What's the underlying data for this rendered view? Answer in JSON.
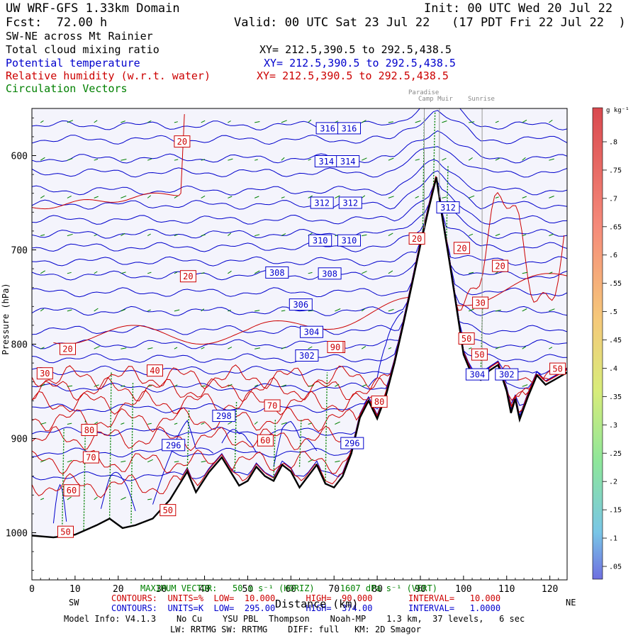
{
  "header": {
    "title": "UW WRF-GFS 1.33km Domain",
    "init": "Init: 00 UTC Wed 20 Jul 22",
    "fcst": "Fcst:  72.00 h",
    "valid": "Valid: 00 UTC Sat 23 Jul 22   (17 PDT Fri 22 Jul 22  )",
    "cross_section": "SW-NE across Mt Rainier",
    "fields": [
      {
        "name": "Total cloud mixing ratio",
        "xy": "XY= 212.5,390.5 to 292.5,438.5",
        "color": "#000000"
      },
      {
        "name": "Potential temperature",
        "xy": "XY= 212.5,390.5 to 292.5,438.5",
        "color": "#0000cc"
      },
      {
        "name": "Relative humidity (w.r.t. water)",
        "xy": "XY= 212.5,390.5 to 292.5,438.5",
        "color": "#cc0000"
      },
      {
        "name": "Circulation Vectors",
        "xy": "",
        "color": "#008000"
      }
    ]
  },
  "landmarks": [
    "Paradise",
    "Camp Muir",
    "Sunrise"
  ],
  "colorbar": {
    "unit": "g kg⁻¹",
    "ticks": [
      ".8",
      ".75",
      ".7",
      ".65",
      ".6",
      ".55",
      ".5",
      ".45",
      ".4",
      ".35",
      ".3",
      ".25",
      ".2",
      ".15",
      ".1",
      ".05"
    ]
  },
  "footer": {
    "sw": "SW",
    "ne": "NE",
    "xlabel": "Distance (km)",
    "max_vector": "MAXIMUM VECTOR:   50 m s⁻¹ (HORIZ)     1607 dPa s⁻¹ (VERT)",
    "rh_contours": "CONTOURS:  UNITS=%  LOW=  10.000      HIGH=  90.000       INTERVAL=   10.000",
    "theta_contours": "CONTOURS:  UNITS=K  LOW=  295.00      HIGH=  374.00       INTERVAL=   1.0000",
    "model_info": "Model Info: V4.1.3    No Cu    YSU PBL  Thompson    Noah-MP    1.3 km,  37 levels,   6 sec",
    "model_info2": "LW: RRTMG SW: RRTMG    DIFF: full   KM: 2D Smagor",
    "colors": {
      "theta": "#0000cc",
      "rh": "#cc0000",
      "vectors": "#008000"
    }
  },
  "chart_data": {
    "type": "cross-section",
    "title": "UW WRF-GFS 1.33km Domain",
    "xlabel": "Distance (km)",
    "ylabel": "Pressure (hPa)",
    "xlim": [
      0,
      124
    ],
    "ylim": [
      1050,
      550
    ],
    "x_ticks": [
      0,
      10,
      20,
      30,
      40,
      50,
      60,
      70,
      80,
      90,
      100,
      110,
      120
    ],
    "y_ticks": [
      600,
      700,
      800,
      900,
      1000
    ],
    "y_tick_labels": [
      "600",
      "700",
      "800",
      "900",
      "1000"
    ],
    "landmark_x": [
      90.9,
      94.4,
      104.3
    ],
    "terrain": {
      "x": [
        0,
        5,
        10,
        15,
        18,
        21,
        24,
        28,
        32,
        36,
        38,
        41,
        44,
        46,
        48,
        50,
        52,
        54,
        56,
        58,
        60,
        62,
        64,
        66,
        68,
        70,
        72,
        74,
        76,
        78,
        80,
        82,
        84,
        86,
        88,
        90,
        92,
        93.7,
        95,
        97,
        99,
        100,
        102,
        104,
        106,
        108,
        110,
        111,
        112,
        113,
        115,
        117,
        119,
        121,
        124
      ],
      "p": [
        1003,
        1005,
        1002,
        992,
        985,
        995,
        992,
        985,
        965,
        935,
        957,
        936,
        920,
        935,
        950,
        945,
        930,
        940,
        945,
        928,
        935,
        952,
        940,
        928,
        948,
        952,
        940,
        916,
        878,
        860,
        879,
        855,
        820,
        780,
        738,
        695,
        655,
        623,
        663,
        720,
        780,
        811,
        833,
        838,
        828,
        822,
        850,
        873,
        858,
        880,
        855,
        833,
        843,
        838,
        830
      ]
    },
    "theta_lines": [
      {
        "v": 296,
        "p": 940
      },
      {
        "v": 297,
        "p": 915
      },
      {
        "v": 298,
        "p": 893
      },
      {
        "v": 299,
        "p": 868
      },
      {
        "v": 300,
        "p": 846
      },
      {
        "v": 301,
        "p": 828
      },
      {
        "v": 302,
        "p": 815
      },
      {
        "v": 303,
        "p": 800
      },
      {
        "v": 304,
        "p": 785
      },
      {
        "v": 305,
        "p": 765
      },
      {
        "v": 306,
        "p": 745
      },
      {
        "v": 307,
        "p": 727
      },
      {
        "v": 308,
        "p": 712
      },
      {
        "v": 309,
        "p": 697
      },
      {
        "v": 310,
        "p": 683
      },
      {
        "v": 311,
        "p": 668
      },
      {
        "v": 312,
        "p": 652
      },
      {
        "v": 313,
        "p": 637
      },
      {
        "v": 314,
        "p": 618
      },
      {
        "v": 315,
        "p": 603
      },
      {
        "v": 316,
        "p": 583
      },
      {
        "v": 317,
        "p": 568
      }
    ],
    "theta_labels": [
      {
        "text": "316",
        "x": 68.5,
        "p": 571
      },
      {
        "text": "316",
        "x": 73.5,
        "p": 571
      },
      {
        "text": "314",
        "x": 68.2,
        "p": 606
      },
      {
        "text": "314",
        "x": 73.2,
        "p": 606
      },
      {
        "text": "312",
        "x": 67.2,
        "p": 650
      },
      {
        "text": "312",
        "x": 73.8,
        "p": 650
      },
      {
        "text": "312",
        "x": 96.4,
        "p": 655
      },
      {
        "text": "310",
        "x": 66.8,
        "p": 690
      },
      {
        "text": "310",
        "x": 73.5,
        "p": 690
      },
      {
        "text": "308",
        "x": 56.8,
        "p": 724
      },
      {
        "text": "308",
        "x": 69.0,
        "p": 725
      },
      {
        "text": "306",
        "x": 62.3,
        "p": 758
      },
      {
        "text": "304",
        "x": 64.8,
        "p": 787
      },
      {
        "text": "302",
        "x": 63.7,
        "p": 812
      },
      {
        "text": "304",
        "x": 103.2,
        "p": 832
      },
      {
        "text": "302",
        "x": 110.0,
        "p": 832
      },
      {
        "text": "298",
        "x": 44.5,
        "p": 876
      },
      {
        "text": "296",
        "x": 32.8,
        "p": 907
      },
      {
        "text": "296",
        "x": 74.2,
        "p": 905
      }
    ],
    "rh_labels": [
      {
        "text": "20",
        "x": 34.8,
        "p": 585
      },
      {
        "text": "20",
        "x": 36.2,
        "p": 728
      },
      {
        "text": "20",
        "x": 8.3,
        "p": 805
      },
      {
        "text": "20",
        "x": 89.2,
        "p": 688
      },
      {
        "text": "20",
        "x": 99.6,
        "p": 698
      },
      {
        "text": "20",
        "x": 108.5,
        "p": 717
      },
      {
        "text": "30",
        "x": 103.9,
        "p": 756
      },
      {
        "text": "30",
        "x": 3.0,
        "p": 831
      },
      {
        "text": "40",
        "x": 28.5,
        "p": 828
      },
      {
        "text": "50",
        "x": 70.7,
        "p": 803
      },
      {
        "text": "50",
        "x": 100.7,
        "p": 794
      },
      {
        "text": "50",
        "x": 103.7,
        "p": 811
      },
      {
        "text": "50",
        "x": 121.8,
        "p": 826
      },
      {
        "text": "50",
        "x": 31.5,
        "p": 976
      },
      {
        "text": "50",
        "x": 7.8,
        "p": 999
      },
      {
        "text": "60",
        "x": 54.1,
        "p": 902
      },
      {
        "text": "60",
        "x": 9.2,
        "p": 955
      },
      {
        "text": "70",
        "x": 55.7,
        "p": 865
      },
      {
        "text": "70",
        "x": 13.7,
        "p": 920
      },
      {
        "text": "80",
        "x": 13.3,
        "p": 891
      },
      {
        "text": "80",
        "x": 80.5,
        "p": 861
      },
      {
        "text": "90",
        "x": 70.3,
        "p": 803
      }
    ]
  }
}
